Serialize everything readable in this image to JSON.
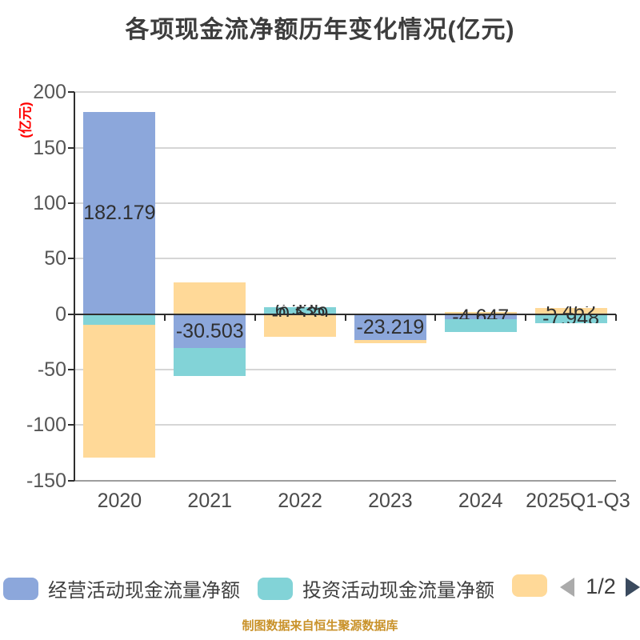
{
  "title": "各项现金流净额历年变化情况(亿元)",
  "y_axis": {
    "name": "(亿元)",
    "name_color": "#ff0000",
    "tick_labels": [
      "200",
      "150",
      "100",
      "50",
      "0",
      "-50",
      "-100",
      "-150"
    ]
  },
  "chart_data": {
    "type": "bar",
    "stacked": true,
    "title": "各项现金流净额历年变化情况(亿元)",
    "ylabel": "(亿元)",
    "ylim": [
      -150,
      200
    ],
    "y_ticks": [
      200,
      150,
      100,
      50,
      0,
      -50,
      -100,
      -150
    ],
    "grid": true,
    "legend_position": "bottom",
    "categories": [
      "2020",
      "2021",
      "2022",
      "2023",
      "2024",
      "2025Q1-Q3"
    ],
    "series": [
      {
        "name": "经营活动现金流量净额",
        "color": "#8ca7db",
        "values": [
          182.179,
          -30.503,
          -0.539,
          -23.219,
          -4.647,
          0
        ]
      },
      {
        "name": "投资活动现金流量净额",
        "color": "#82d3d7",
        "values": [
          -9.5,
          -25.5,
          6.335,
          0,
          -11.5,
          -7.95
        ]
      },
      {
        "name": "",
        "color": "#ffd998",
        "values": [
          -119.5,
          28.9,
          -19.6,
          -2.9,
          2.2,
          5.46
        ]
      }
    ],
    "visible_bar_labels": [
      {
        "category_index": 0,
        "series_index": 0,
        "text": "182.179",
        "partially_visible": false
      },
      {
        "category_index": 1,
        "series_index": 0,
        "text": "-30.503",
        "partially_visible": false
      },
      {
        "category_index": 2,
        "series_index": 1,
        "text": "6.335",
        "partially_visible": true
      },
      {
        "category_index": 2,
        "series_index": 0,
        "text": "-0.539",
        "partially_visible": true
      },
      {
        "category_index": 3,
        "series_index": 0,
        "text": "-23.219",
        "partially_visible": false
      },
      {
        "category_index": 4,
        "series_index": 0,
        "text": "-4.647",
        "partially_visible": true
      },
      {
        "category_index": 5,
        "series_index": 2,
        "text": "5.462",
        "partially_visible": true
      },
      {
        "category_index": 5,
        "series_index": 1,
        "text": "-7.948",
        "partially_visible": true
      }
    ]
  },
  "legend": {
    "items": [
      {
        "label": "经营活动现金流量净额",
        "color": "#8ca7db"
      },
      {
        "label": "投资活动现金流量净额",
        "color": "#82d3d7"
      },
      {
        "label": "",
        "color": "#ffd998"
      }
    ],
    "pagination": {
      "current": "1/2"
    }
  },
  "footer": {
    "source_text": "制图数据来自恒生聚源数据库",
    "color": "#c9922a"
  }
}
